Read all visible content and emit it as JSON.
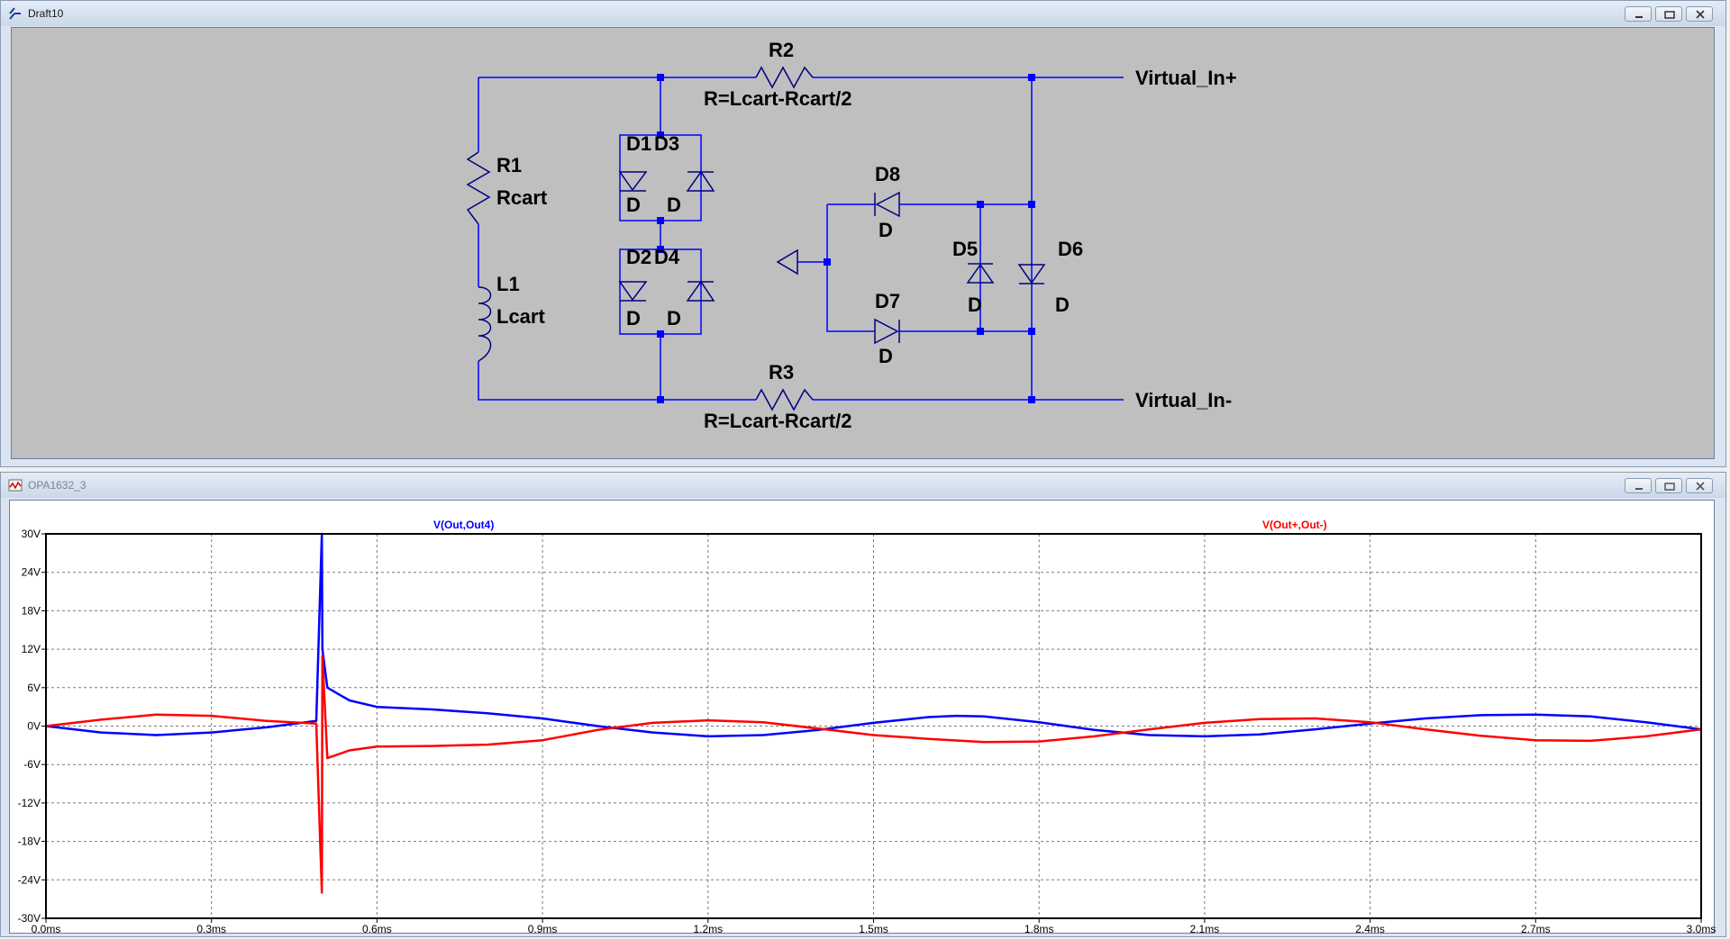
{
  "schematic_window": {
    "title": "Draft10",
    "components": {
      "R1_name": "R1",
      "R1_value": "Rcart",
      "L1_name": "L1",
      "L1_value": "Lcart",
      "R2_name": "R2",
      "R2_value": "R=Lcart-Rcart/2",
      "R3_name": "R3",
      "R3_value": "R=Lcart-Rcart/2",
      "D1_name": "D1",
      "D3_name": "D3",
      "D1_model": "D",
      "D3_model": "D",
      "D2_name": "D2",
      "D4_name": "D4",
      "D2_model": "D",
      "D4_model": "D",
      "D8_name": "D8",
      "D8_model": "D",
      "D7_name": "D7",
      "D7_model": "D",
      "D5_name": "D5",
      "D5_model": "D",
      "D6_name": "D6",
      "D6_model": "D"
    },
    "labels": {
      "in_plus": "Virtual_In+",
      "in_minus": "Virtual_In-"
    },
    "colors": {
      "wire": "#0000ff",
      "component": "#000080",
      "background": "#bfbfbf"
    }
  },
  "plot_window": {
    "title": "OPA1632_3",
    "traces": [
      {
        "name": "V(Out,Out4)",
        "color": "#0000ff"
      },
      {
        "name": "V(Out+,Out-)",
        "color": "#ff0000"
      }
    ],
    "y_ticks": [
      "30V",
      "24V",
      "18V",
      "12V",
      "6V",
      "0V",
      "-6V",
      "-12V",
      "-18V",
      "-24V",
      "-30V"
    ],
    "x_ticks": [
      "0.0ms",
      "0.3ms",
      "0.6ms",
      "0.9ms",
      "1.2ms",
      "1.5ms",
      "1.8ms",
      "2.1ms",
      "2.4ms",
      "2.7ms",
      "3.0ms"
    ]
  },
  "chart_data": {
    "type": "line",
    "xlabel": "",
    "ylabel": "",
    "xlim": [
      0,
      3.0
    ],
    "ylim": [
      -30,
      30
    ],
    "grid": true,
    "series": [
      {
        "name": "V(Out,Out4)",
        "color": "#0000ff",
        "x": [
          0.0,
          0.1,
          0.2,
          0.3,
          0.4,
          0.49,
          0.5,
          0.501,
          0.51,
          0.55,
          0.6,
          0.7,
          0.8,
          0.9,
          1.0,
          1.1,
          1.2,
          1.3,
          1.4,
          1.5,
          1.6,
          1.65,
          1.7,
          1.8,
          1.9,
          2.0,
          2.1,
          2.2,
          2.3,
          2.4,
          2.5,
          2.6,
          2.7,
          2.8,
          2.9,
          3.0
        ],
        "y": [
          0,
          -1.0,
          -1.4,
          -1.0,
          -0.2,
          0.8,
          30,
          12,
          6,
          4.0,
          3.0,
          2.6,
          2.0,
          1.2,
          0,
          -1.0,
          -1.6,
          -1.4,
          -0.6,
          0.5,
          1.4,
          1.6,
          1.5,
          0.6,
          -0.6,
          -1.4,
          -1.6,
          -1.3,
          -0.5,
          0.4,
          1.2,
          1.7,
          1.8,
          1.5,
          0.6,
          -0.5
        ]
      },
      {
        "name": "V(Out+,Out-)",
        "color": "#ff0000",
        "x": [
          0.0,
          0.1,
          0.2,
          0.3,
          0.4,
          0.49,
          0.5,
          0.501,
          0.51,
          0.55,
          0.6,
          0.7,
          0.8,
          0.9,
          1.0,
          1.1,
          1.2,
          1.3,
          1.4,
          1.5,
          1.6,
          1.7,
          1.8,
          1.9,
          2.0,
          2.1,
          2.2,
          2.3,
          2.4,
          2.5,
          2.6,
          2.7,
          2.8,
          2.9,
          3.0
        ],
        "y": [
          0,
          1.0,
          1.8,
          1.6,
          0.8,
          0.4,
          -26,
          11,
          -5,
          -3.8,
          -3.2,
          -3.1,
          -2.9,
          -2.2,
          -0.6,
          0.5,
          0.9,
          0.6,
          -0.4,
          -1.4,
          -2.0,
          -2.5,
          -2.4,
          -1.6,
          -0.5,
          0.5,
          1.1,
          1.2,
          0.6,
          -0.5,
          -1.5,
          -2.2,
          -2.3,
          -1.6,
          -0.5
        ]
      }
    ]
  }
}
